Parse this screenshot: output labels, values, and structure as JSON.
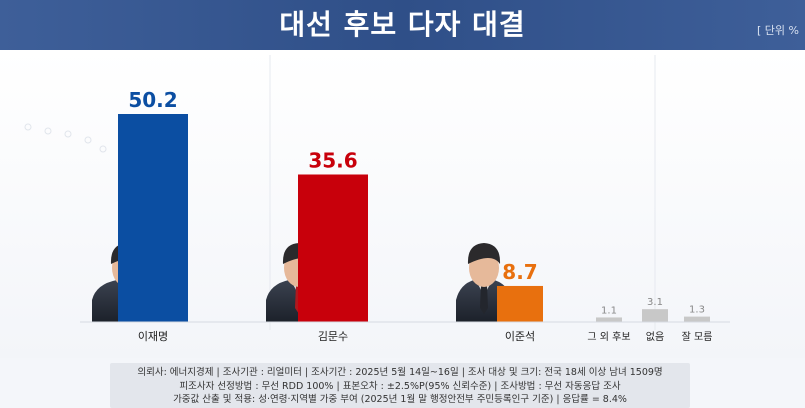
{
  "header": {
    "title": "대선 후보 다자 대결",
    "unit": "[ 단위 %"
  },
  "colors": {
    "lee_jaemyung": "#0b4ea2",
    "kim_moonsoo": "#c8000b",
    "lee_junseok": "#e8700e",
    "others": "#c8c8c8",
    "header_bg": "#2f4f88"
  },
  "chart_data": {
    "type": "bar",
    "title": "대선 후보 다자 대결",
    "xlabel": "",
    "ylabel": "",
    "unit": "%",
    "ylim": [
      0,
      60
    ],
    "categories": [
      "이재명",
      "김문수",
      "이준석",
      "그 외 후보",
      "없음",
      "잘 모름"
    ],
    "values": [
      50.2,
      35.6,
      8.7,
      1.1,
      3.1,
      1.3
    ],
    "value_labels": [
      "50.2",
      "35.6",
      "8.7",
      "1.1",
      "3.1",
      "1.3"
    ]
  },
  "footer": {
    "line1": "의뢰사: 에너지경제 | 조사기관 : 리얼미터 | 조사기간 : 2025년 5월 14일~16일 | 조사 대상 및 크기: 전국 18세 이상 남녀 1509명",
    "line2": "피조사자 선정방법 : 무선 RDD 100% | 표본오차 : ±2.5%P(95% 신뢰수준) | 조사방법 : 무선 자동응답 조사",
    "line3": "가중값 산출 및 적용: 성·연령·지역별 가중 부여 (2025년 1월 말 행정안전부 주민등록인구 기준) | 응답률 = 8.4%"
  }
}
